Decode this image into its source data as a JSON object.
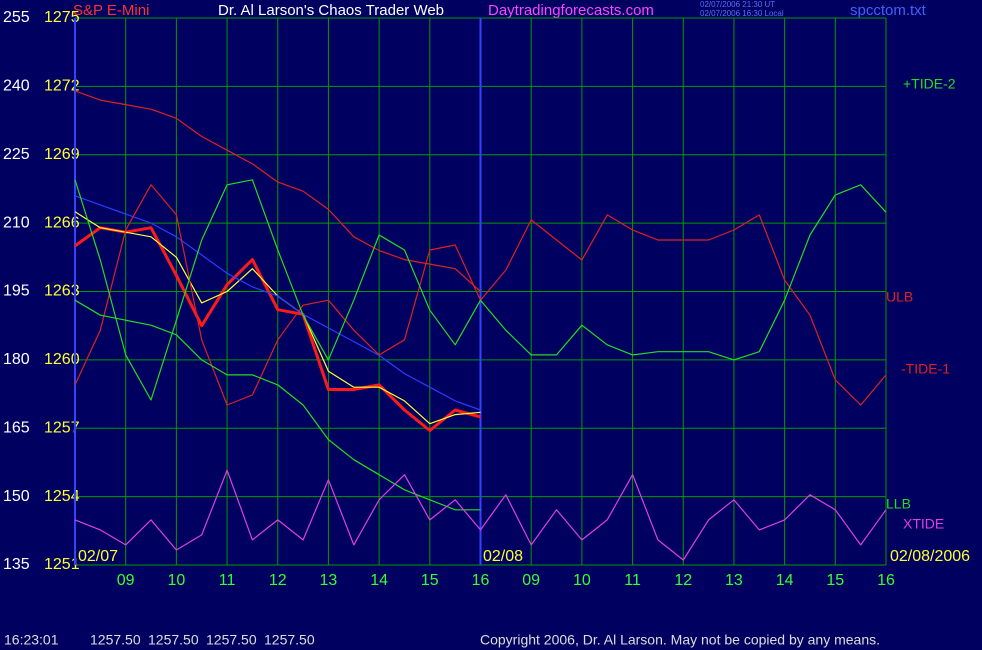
{
  "chart_data": {
    "type": "line",
    "title": "Dr. Al Larson's Chaos Trader Web",
    "site": "Daytradingforecasts.com",
    "timestamps": [
      "02/07/2006 21:30 UT",
      "02/07/2006 16:30 Local"
    ],
    "file": "spcctom.txt",
    "date_labels": [
      "02/07",
      "02/08",
      "02/08/2006"
    ],
    "x": [
      8,
      8.5,
      9,
      9.5,
      10,
      10.5,
      11,
      11.5,
      12,
      12.5,
      13,
      13.5,
      14,
      14.5,
      15,
      15.5,
      16,
      16.5,
      17,
      17.5,
      18,
      18.5,
      19,
      19.5,
      20,
      20.5,
      21,
      21.5,
      22,
      22.5,
      23,
      23.5,
      24
    ],
    "xlim": [
      8,
      24
    ],
    "xticks": [
      {
        "value": 9,
        "label": "09"
      },
      10,
      11,
      12,
      13,
      14,
      15,
      16,
      {
        "value": 17,
        "label": "09"
      },
      {
        "value": 18,
        "label": "10"
      },
      {
        "value": 19,
        "label": "11"
      },
      {
        "value": 20,
        "label": "12"
      },
      {
        "value": 21,
        "label": "13"
      },
      {
        "value": 22,
        "label": "14"
      },
      {
        "value": 23,
        "label": "15"
      },
      {
        "value": 24,
        "label": "16"
      }
    ],
    "ylim": [
      1251,
      1275
    ],
    "yticks": [
      1251,
      1254,
      1257,
      1260,
      1263,
      1266,
      1269,
      1272,
      1275
    ],
    "y2lim": [
      135,
      255
    ],
    "y2ticks": [
      135,
      150,
      165,
      180,
      195,
      210,
      225,
      240,
      255
    ],
    "grid": true,
    "series": [
      {
        "name": "S&P E-Mini",
        "color": "#ff1a1a",
        "values": [
          1265.0,
          1265.8,
          1265.6,
          1265.8,
          1263.7,
          1261.5,
          1263.3,
          1264.4,
          1262.2,
          1262.0,
          1258.7,
          1258.7,
          1258.9,
          1257.8,
          1256.9,
          1257.8,
          1257.5,
          null,
          null,
          null,
          null,
          null,
          null,
          null,
          null,
          null,
          null,
          null,
          null,
          null,
          null,
          null,
          null
        ]
      },
      {
        "color": "#ffff33",
        "values": [
          1266.5,
          1265.8,
          1265.6,
          1265.4,
          1264.5,
          1262.5,
          1263.0,
          1264.0,
          1262.8,
          1262.0,
          1259.5,
          1258.8,
          1258.8,
          1258.2,
          1257.2,
          1257.6,
          1257.7,
          null,
          null,
          null,
          null,
          null,
          null,
          null,
          null,
          null,
          null,
          null,
          null,
          null,
          null,
          null,
          null
        ]
      },
      {
        "color": "#2b3cff",
        "axis": "y2",
        "values": [
          216,
          214,
          212,
          210,
          207,
          203,
          199,
          196,
          194,
          190,
          187,
          184,
          181,
          177,
          174,
          171,
          169,
          null,
          null,
          null,
          null,
          null,
          null,
          null,
          null,
          null,
          null,
          null,
          null,
          null,
          null,
          null,
          null
        ]
      },
      {
        "name": "ULB",
        "color": "#e02020",
        "axis": "y2",
        "values": [
          239,
          237,
          236,
          235,
          233,
          229,
          226,
          223,
          219,
          217,
          213,
          207,
          204,
          202,
          201,
          200,
          195,
          null,
          null,
          null,
          null,
          null,
          null,
          null,
          null,
          null,
          null,
          null,
          null,
          null,
          null,
          null,
          null
        ]
      },
      {
        "name": "-TIDE-1",
        "color": "#e02020",
        "axis": "y2",
        "values": [
          174.5,
          186.5,
          208.5,
          218.4,
          211.8,
          184.4,
          170.1,
          172.3,
          184.4,
          192.0,
          193.1,
          186.5,
          181.1,
          184.4,
          204.1,
          205.2,
          193.1,
          199.7,
          210.7,
          206.3,
          201.9,
          211.8,
          208.5,
          206.3,
          206.3,
          206.3,
          208.5,
          211.8,
          197.5,
          189.8,
          175.6,
          170.1,
          176.7
        ]
      },
      {
        "name": "+TIDE-2",
        "color": "#22dd22",
        "axis": "y2",
        "values": [
          219.5,
          201.9,
          181.1,
          171.2,
          188.7,
          206.3,
          218.4,
          219.5,
          204.1,
          189.8,
          180.0,
          193.1,
          207.4,
          204.1,
          190.9,
          183.3,
          193.1,
          186.5,
          181.1,
          181.1,
          187.6,
          183.3,
          181.1,
          181.8,
          181.8,
          181.8,
          180.0,
          181.8,
          193.1,
          207.4,
          216.2,
          218.4,
          212.4
        ]
      },
      {
        "name": "LLB",
        "color": "#22dd22",
        "axis": "y2",
        "values": [
          193.1,
          189.8,
          188.7,
          187.6,
          185.5,
          180.0,
          176.7,
          176.7,
          174.5,
          170.1,
          162.5,
          158.1,
          154.8,
          151.5,
          149.3,
          147.1,
          147.1,
          null,
          null,
          null,
          null,
          null,
          null,
          null,
          null,
          null,
          null,
          null,
          null,
          null,
          null,
          null,
          null
        ]
      },
      {
        "name": "XTIDE",
        "color": "#e040e0",
        "axis": "y2",
        "values": [
          144.9,
          142.7,
          139.4,
          144.9,
          138.3,
          141.6,
          155.8,
          140.5,
          144.9,
          140.5,
          153.7,
          139.4,
          149.3,
          154.8,
          144.9,
          149.3,
          142.7,
          150.4,
          139.4,
          147.1,
          140.5,
          144.9,
          154.8,
          140.5,
          136.1,
          144.9,
          149.3,
          142.7,
          144.9,
          150.4,
          147.1,
          139.4,
          147.1
        ]
      }
    ]
  },
  "status_bar": {
    "time": "16:23:01",
    "quotes": [
      "1257.50",
      "1257.50",
      "1257.50",
      "1257.50"
    ],
    "copyright": "Copyright 2006, Dr. Al Larson. May not be copied by any means."
  }
}
